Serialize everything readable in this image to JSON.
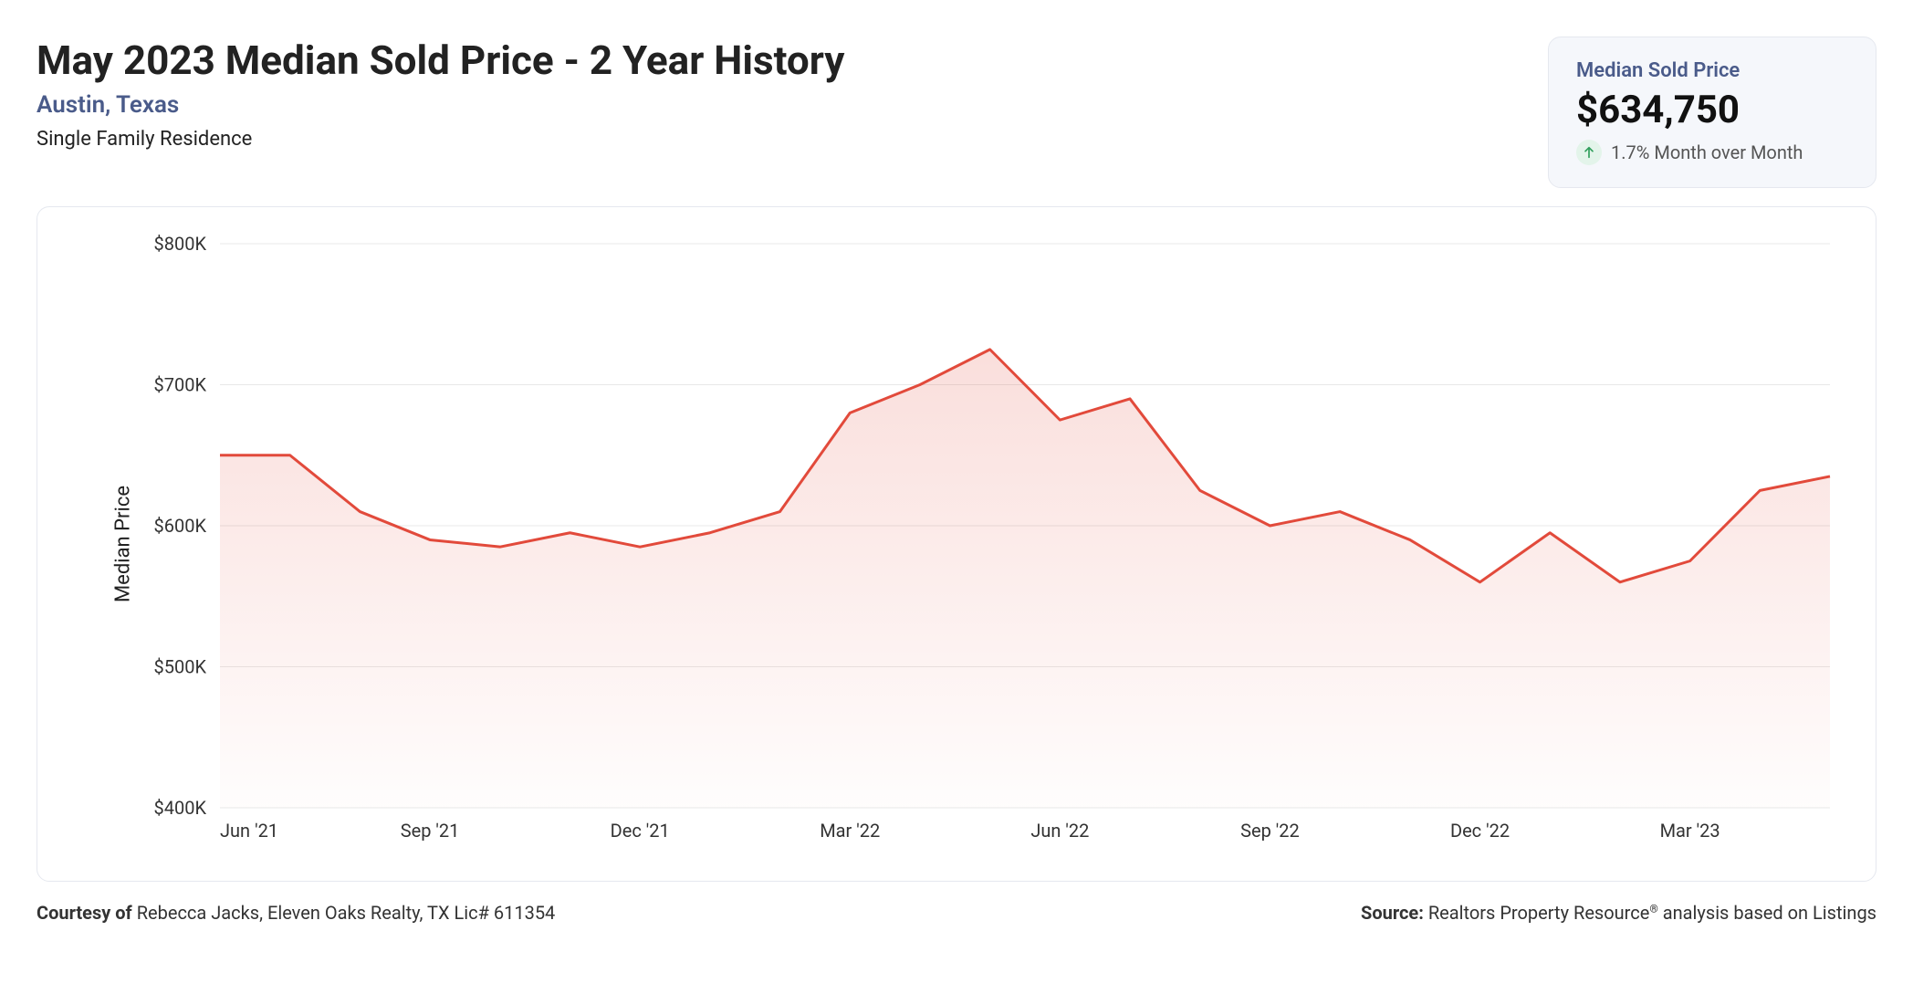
{
  "header": {
    "title": "May 2023 Median Sold Price - 2 Year History",
    "location": "Austin, Texas",
    "property_type": "Single Family Residence"
  },
  "stat": {
    "label": "Median Sold Price",
    "value": "$634,750",
    "change": "1.7% Month over Month",
    "change_direction": "up",
    "change_icon_bg": "#e3f4ea",
    "change_icon_color": "#2e9e5b"
  },
  "chart": {
    "type": "area",
    "y_axis_title": "Median Price",
    "background_color": "#ffffff",
    "grid_color": "#e8e8e8",
    "line_color": "#e24a3b",
    "line_width": 3,
    "area_fill_top": "rgba(226,74,59,0.18)",
    "area_fill_bottom": "rgba(226,74,59,0.01)",
    "ylim": [
      400000,
      800000
    ],
    "y_ticks": [
      {
        "v": 400000,
        "label": "$400K"
      },
      {
        "v": 500000,
        "label": "$500K"
      },
      {
        "v": 600000,
        "label": "$600K"
      },
      {
        "v": 700000,
        "label": "$700K"
      },
      {
        "v": 800000,
        "label": "$800K"
      }
    ],
    "x_ticks": [
      {
        "i": 0,
        "label": "Jun '21"
      },
      {
        "i": 3,
        "label": "Sep '21"
      },
      {
        "i": 6,
        "label": "Dec '21"
      },
      {
        "i": 9,
        "label": "Mar '22"
      },
      {
        "i": 12,
        "label": "Jun '22"
      },
      {
        "i": 15,
        "label": "Sep '22"
      },
      {
        "i": 18,
        "label": "Dec '22"
      },
      {
        "i": 21,
        "label": "Mar '23"
      }
    ],
    "series": {
      "name": "Median Sold Price",
      "values": [
        650000,
        650000,
        610000,
        590000,
        585000,
        595000,
        585000,
        595000,
        610000,
        680000,
        700000,
        725000,
        675000,
        690000,
        625000,
        600000,
        610000,
        590000,
        560000,
        595000,
        560000,
        575000,
        625000,
        635000
      ]
    }
  },
  "footer": {
    "courtesy_prefix": "Courtesy of ",
    "courtesy_text": "Rebecca Jacks, Eleven Oaks Realty, TX Lic# 611354",
    "source_prefix": "Source: ",
    "source_text_a": "Realtors Property Resource",
    "source_text_b": " analysis based on Listings"
  },
  "colors": {
    "title_text": "#222222",
    "location_text": "#4a5b8a",
    "box_bg": "#f5f7fb",
    "box_border": "#e5e8ef"
  }
}
